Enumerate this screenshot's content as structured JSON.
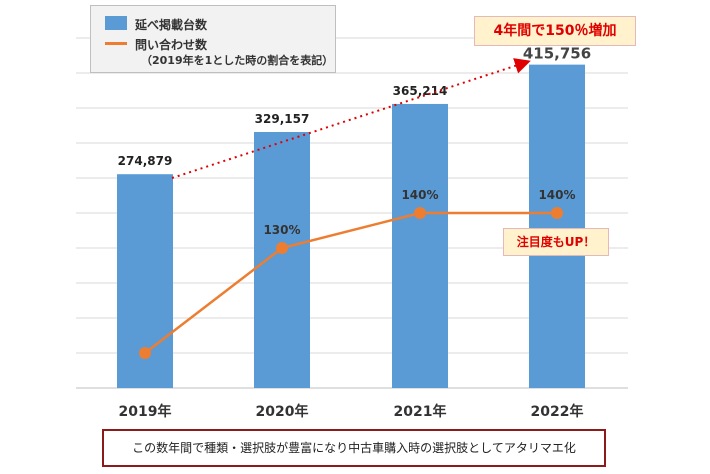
{
  "legend": {
    "bar_label": "延べ掲載台数",
    "line_label": "問い合わせ数",
    "line_note": "（2019年を1とした時の割合を表記）"
  },
  "callouts": {
    "growth": "4年間で150％増加",
    "attention": "注目度もUP！"
  },
  "caption": "この数年間で種類・選択肢が豊富になり中古車購入時の選択肢としてアタリマエ化",
  "colors": {
    "bar": "#5b9bd5",
    "line": "#ed7d31",
    "trend": "#e00000",
    "grid": "#d9d9d9"
  },
  "chart_data": {
    "type": "bar",
    "categories": [
      "2019年",
      "2020年",
      "2021年",
      "2022年"
    ],
    "series": [
      {
        "name": "延べ掲載台数",
        "type": "bar",
        "values": [
          274879,
          329157,
          365214,
          415756
        ],
        "labels": [
          "274,879",
          "329,157",
          "365,214",
          "415,756"
        ]
      },
      {
        "name": "問い合わせ数",
        "type": "line",
        "values": [
          100,
          130,
          140,
          140
        ],
        "labels": [
          "",
          "130%",
          "140%",
          "140%"
        ]
      }
    ],
    "trend_line": {
      "from": "2019年",
      "to": "2022年",
      "style": "dotted-arrow"
    },
    "ylim": [
      0,
      450000
    ],
    "line_ylim": [
      90,
      190
    ],
    "grid": true
  }
}
